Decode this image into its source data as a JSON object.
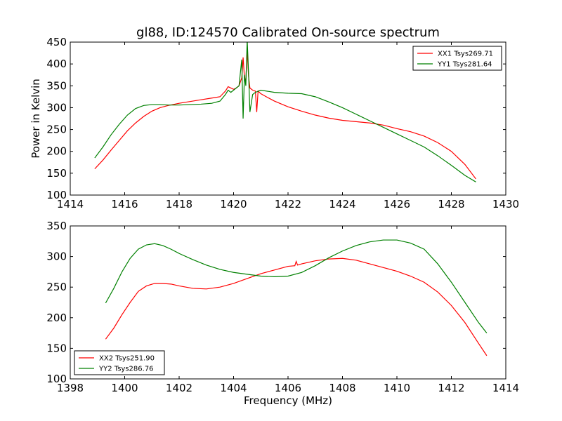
{
  "title": "gl88, ID:124570 Calibrated On-source spectrum",
  "chart_data": [
    {
      "type": "line",
      "xlim": [
        1414,
        1430
      ],
      "ylim": [
        100,
        450
      ],
      "xticks": [
        "1414",
        "1416",
        "1418",
        "1420",
        "1422",
        "1424",
        "1426",
        "1428",
        "1430"
      ],
      "yticks": [
        "100",
        "150",
        "200",
        "250",
        "300",
        "350",
        "400",
        "450"
      ],
      "xlabel": "",
      "ylabel": "Power in Kelvin",
      "grid": false,
      "legend_position": "top-right",
      "series": [
        {
          "name": "XX1 Tsys269.71",
          "color": "#ff0000",
          "x": [
            1414.9,
            1415.2,
            1415.5,
            1415.8,
            1416.1,
            1416.4,
            1416.7,
            1417.0,
            1417.3,
            1417.6,
            1418.0,
            1418.4,
            1418.8,
            1419.2,
            1419.5,
            1419.7,
            1419.8,
            1419.9,
            1420.0,
            1420.1,
            1420.2,
            1420.3,
            1420.35,
            1420.4,
            1420.45,
            1420.5,
            1420.55,
            1420.6,
            1420.7,
            1420.8,
            1420.85,
            1420.9,
            1421.0,
            1421.2,
            1421.5,
            1422.0,
            1422.5,
            1423.0,
            1423.5,
            1424.0,
            1424.5,
            1425.0,
            1425.5,
            1426.0,
            1426.5,
            1427.0,
            1427.5,
            1428.0,
            1428.5,
            1428.9
          ],
          "y": [
            160,
            180,
            203,
            225,
            247,
            265,
            280,
            292,
            300,
            305,
            310,
            314,
            318,
            322,
            325,
            338,
            348,
            345,
            342,
            345,
            350,
            368,
            415,
            368,
            362,
            432,
            372,
            345,
            340,
            338,
            290,
            338,
            332,
            325,
            315,
            302,
            292,
            283,
            276,
            271,
            268,
            265,
            260,
            252,
            245,
            235,
            220,
            200,
            170,
            137
          ]
        },
        {
          "name": "YY1 Tsys281.64",
          "color": "#008000",
          "x": [
            1414.9,
            1415.2,
            1415.5,
            1415.8,
            1416.1,
            1416.4,
            1416.7,
            1417.0,
            1417.3,
            1417.6,
            1418.0,
            1418.4,
            1418.8,
            1419.2,
            1419.5,
            1419.7,
            1419.8,
            1419.9,
            1420.0,
            1420.1,
            1420.2,
            1420.25,
            1420.3,
            1420.35,
            1420.4,
            1420.45,
            1420.5,
            1420.55,
            1420.6,
            1420.7,
            1420.8,
            1421.0,
            1421.5,
            1422.0,
            1422.5,
            1423.0,
            1423.5,
            1424.0,
            1424.5,
            1425.0,
            1425.5,
            1426.0,
            1426.5,
            1427.0,
            1427.5,
            1428.0,
            1428.5,
            1428.9
          ],
          "y": [
            185,
            210,
            238,
            262,
            283,
            298,
            305,
            307,
            307,
            306,
            306,
            307,
            308,
            310,
            315,
            330,
            340,
            335,
            340,
            345,
            350,
            380,
            410,
            275,
            375,
            350,
            455,
            380,
            290,
            330,
            335,
            340,
            335,
            333,
            332,
            325,
            313,
            300,
            285,
            270,
            255,
            240,
            225,
            210,
            190,
            168,
            145,
            130
          ]
        }
      ]
    },
    {
      "type": "line",
      "xlim": [
        1398,
        1414
      ],
      "ylim": [
        100,
        350
      ],
      "xticks": [
        "1398",
        "1400",
        "1402",
        "1404",
        "1406",
        "1408",
        "1410",
        "1412",
        "1414"
      ],
      "yticks": [
        "100",
        "150",
        "200",
        "250",
        "300",
        "350"
      ],
      "xlabel": "Frequency (MHz)",
      "ylabel": "",
      "grid": false,
      "legend_position": "bottom-left",
      "series": [
        {
          "name": "XX2 Tsys251.90",
          "color": "#ff0000",
          "x": [
            1399.3,
            1399.6,
            1399.9,
            1400.2,
            1400.5,
            1400.8,
            1401.1,
            1401.4,
            1401.7,
            1402.0,
            1402.5,
            1403.0,
            1403.5,
            1404.0,
            1404.5,
            1405.0,
            1405.5,
            1406.0,
            1406.25,
            1406.3,
            1406.35,
            1406.5,
            1407.0,
            1407.5,
            1408.0,
            1408.5,
            1409.0,
            1409.5,
            1410.0,
            1410.5,
            1411.0,
            1411.5,
            1412.0,
            1412.5,
            1413.0,
            1413.3
          ],
          "y": [
            165,
            183,
            205,
            225,
            243,
            252,
            256,
            256,
            255,
            252,
            248,
            247,
            250,
            256,
            264,
            272,
            278,
            284,
            285,
            292,
            286,
            288,
            293,
            296,
            297,
            294,
            288,
            282,
            276,
            268,
            258,
            242,
            220,
            192,
            158,
            138
          ]
        },
        {
          "name": "YY2 Tsys286.76",
          "color": "#008000",
          "x": [
            1399.3,
            1399.6,
            1399.9,
            1400.2,
            1400.5,
            1400.8,
            1401.1,
            1401.4,
            1401.7,
            1402.0,
            1402.5,
            1403.0,
            1403.5,
            1404.0,
            1404.5,
            1405.0,
            1405.5,
            1406.0,
            1406.5,
            1407.0,
            1407.5,
            1408.0,
            1408.5,
            1409.0,
            1409.5,
            1410.0,
            1410.5,
            1411.0,
            1411.5,
            1412.0,
            1412.5,
            1413.0,
            1413.3
          ],
          "y": [
            224,
            248,
            275,
            297,
            312,
            319,
            321,
            318,
            312,
            305,
            295,
            286,
            279,
            274,
            271,
            268,
            267,
            268,
            274,
            285,
            298,
            309,
            318,
            324,
            327,
            327,
            322,
            312,
            288,
            258,
            225,
            192,
            175
          ]
        }
      ]
    }
  ]
}
